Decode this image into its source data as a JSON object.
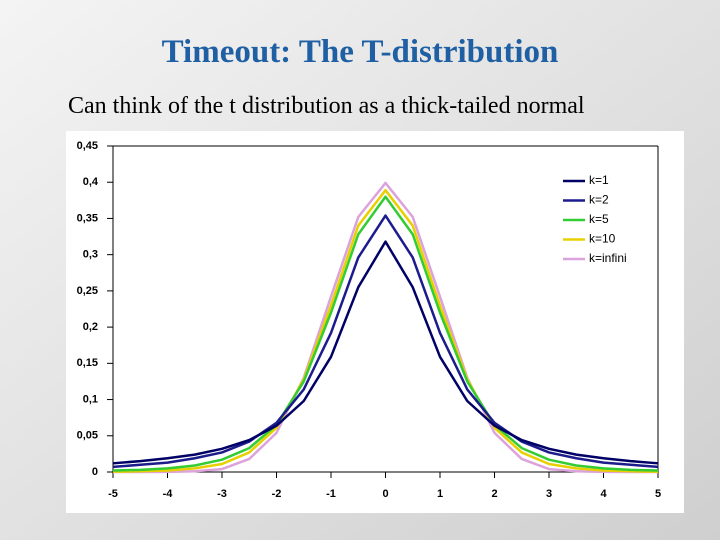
{
  "chart_data": {
    "type": "line",
    "title": "Timeout: The T-distribution",
    "subtitle": "Can think of the t distribution as a thick-tailed normal",
    "x": [
      -5,
      -4.5,
      -4,
      -3.5,
      -3,
      -2.5,
      -2,
      -1.5,
      -1,
      -0.5,
      0,
      0.5,
      1,
      1.5,
      2,
      2.5,
      3,
      3.5,
      4,
      4.5,
      5
    ],
    "series": [
      {
        "name": "k=1",
        "color": "#000066",
        "values": [
          0.012,
          0.015,
          0.019,
          0.024,
          0.032,
          0.044,
          0.064,
          0.098,
          0.159,
          0.255,
          0.318,
          0.255,
          0.159,
          0.098,
          0.064,
          0.044,
          0.032,
          0.024,
          0.019,
          0.015,
          0.012
        ]
      },
      {
        "name": "k=2",
        "color": "#1c1c8c",
        "values": [
          0.007,
          0.01,
          0.013,
          0.019,
          0.027,
          0.042,
          0.068,
          0.114,
          0.192,
          0.296,
          0.354,
          0.296,
          0.192,
          0.114,
          0.068,
          0.042,
          0.027,
          0.019,
          0.013,
          0.01,
          0.007
        ]
      },
      {
        "name": "k=5",
        "color": "#33cc33",
        "values": [
          0.002,
          0.003,
          0.005,
          0.009,
          0.017,
          0.033,
          0.065,
          0.125,
          0.22,
          0.328,
          0.38,
          0.328,
          0.22,
          0.125,
          0.065,
          0.033,
          0.017,
          0.009,
          0.005,
          0.003,
          0.002
        ]
      },
      {
        "name": "k=10",
        "color": "#e8d000",
        "values": [
          0.0004,
          0.001,
          0.002,
          0.005,
          0.011,
          0.027,
          0.061,
          0.128,
          0.23,
          0.34,
          0.389,
          0.34,
          0.23,
          0.128,
          0.061,
          0.027,
          0.011,
          0.005,
          0.002,
          0.001,
          0.0004
        ]
      },
      {
        "name": "k=infini",
        "color": "#dba2dc",
        "values": [
          0,
          0,
          0.0001,
          0.001,
          0.004,
          0.018,
          0.054,
          0.13,
          0.242,
          0.352,
          0.399,
          0.352,
          0.242,
          0.13,
          0.054,
          0.018,
          0.004,
          0.001,
          0.0001,
          0,
          0
        ]
      }
    ],
    "xlim": [
      -5,
      5
    ],
    "xticks": [
      -5,
      -4,
      -3,
      -2,
      -1,
      0,
      1,
      2,
      3,
      4,
      5
    ],
    "ylim": [
      0,
      0.45
    ],
    "yticks": [
      0,
      {
        "value": 0.05,
        "label": "0,05"
      },
      {
        "value": 0.1,
        "label": "0,1"
      },
      {
        "value": 0.15,
        "label": "0,15"
      },
      {
        "value": 0.2,
        "label": "0,2"
      },
      {
        "value": 0.25,
        "label": "0,25"
      },
      {
        "value": 0.3,
        "label": "0,3"
      },
      {
        "value": 0.35,
        "label": "0,35"
      },
      {
        "value": 0.4,
        "label": "0,4"
      },
      {
        "value": 0.45,
        "label": "0,45"
      }
    ],
    "legend": "upper-right"
  }
}
